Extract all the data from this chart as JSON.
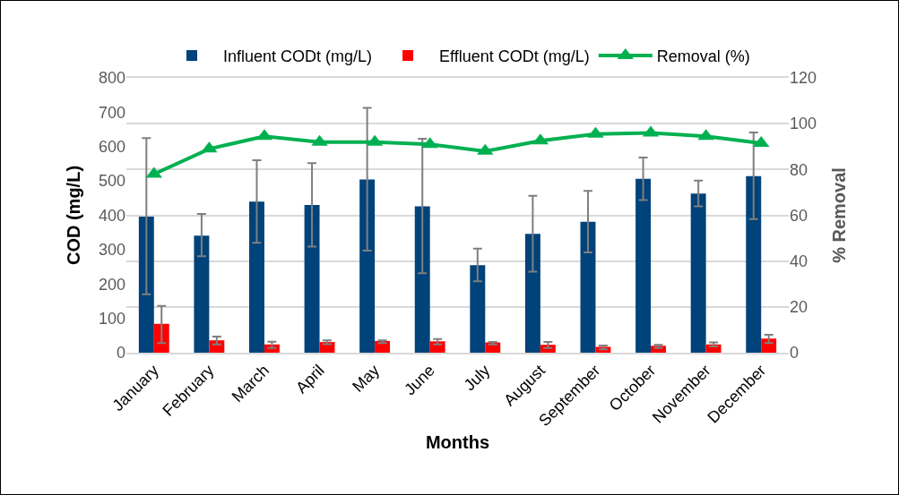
{
  "chart_data": {
    "type": "bar",
    "xlabel": "Months",
    "ylabel": "COD (mg/L)",
    "y2label": "% Removal",
    "categories": [
      "January",
      "February",
      "March",
      "April",
      "May",
      "June",
      "July",
      "August",
      "September",
      "October",
      "November",
      "December"
    ],
    "series": [
      {
        "name": "Influent CODt (mg/L)",
        "color": "#00427a",
        "values": [
          396,
          341,
          440,
          430,
          504,
          426,
          255,
          346,
          381,
          506,
          463,
          514
        ],
        "errors": [
          [
            170,
            625
          ],
          [
            281,
            404
          ],
          [
            320,
            560
          ],
          [
            309,
            552
          ],
          [
            297,
            713
          ],
          [
            231,
            623
          ],
          [
            208,
            303
          ],
          [
            236,
            457
          ],
          [
            292,
            471
          ],
          [
            444,
            568
          ],
          [
            426,
            501
          ],
          [
            389,
            641
          ]
        ]
      },
      {
        "name": "Effluent CODt (mg/L)",
        "color": "#ff0000",
        "values": [
          84,
          36,
          24,
          31,
          34,
          33,
          30,
          23,
          17,
          20,
          24,
          41
        ],
        "errors": [
          [
            28,
            136
          ],
          [
            24,
            47
          ],
          [
            14,
            32
          ],
          [
            25,
            36
          ],
          [
            28,
            36
          ],
          [
            24,
            40
          ],
          [
            24,
            31
          ],
          [
            14,
            31
          ],
          [
            10,
            21
          ],
          [
            14,
            23
          ],
          [
            18,
            30
          ],
          [
            28,
            52
          ]
        ]
      },
      {
        "name": "Removal (%)",
        "type": "line",
        "axis": "y2",
        "color": "#00b050",
        "marker": "triangle",
        "values": [
          78,
          89,
          94.5,
          92,
          92,
          91,
          88,
          92.5,
          95.5,
          96,
          94.5,
          91.5
        ]
      }
    ],
    "ylim": [
      0,
      800
    ],
    "yticks": [
      0,
      100,
      200,
      300,
      400,
      500,
      600,
      700,
      800
    ],
    "y2lim": [
      0,
      120
    ],
    "y2ticks": [
      0,
      20,
      40,
      60,
      80,
      100,
      120
    ],
    "grid": true,
    "legend": "top"
  }
}
